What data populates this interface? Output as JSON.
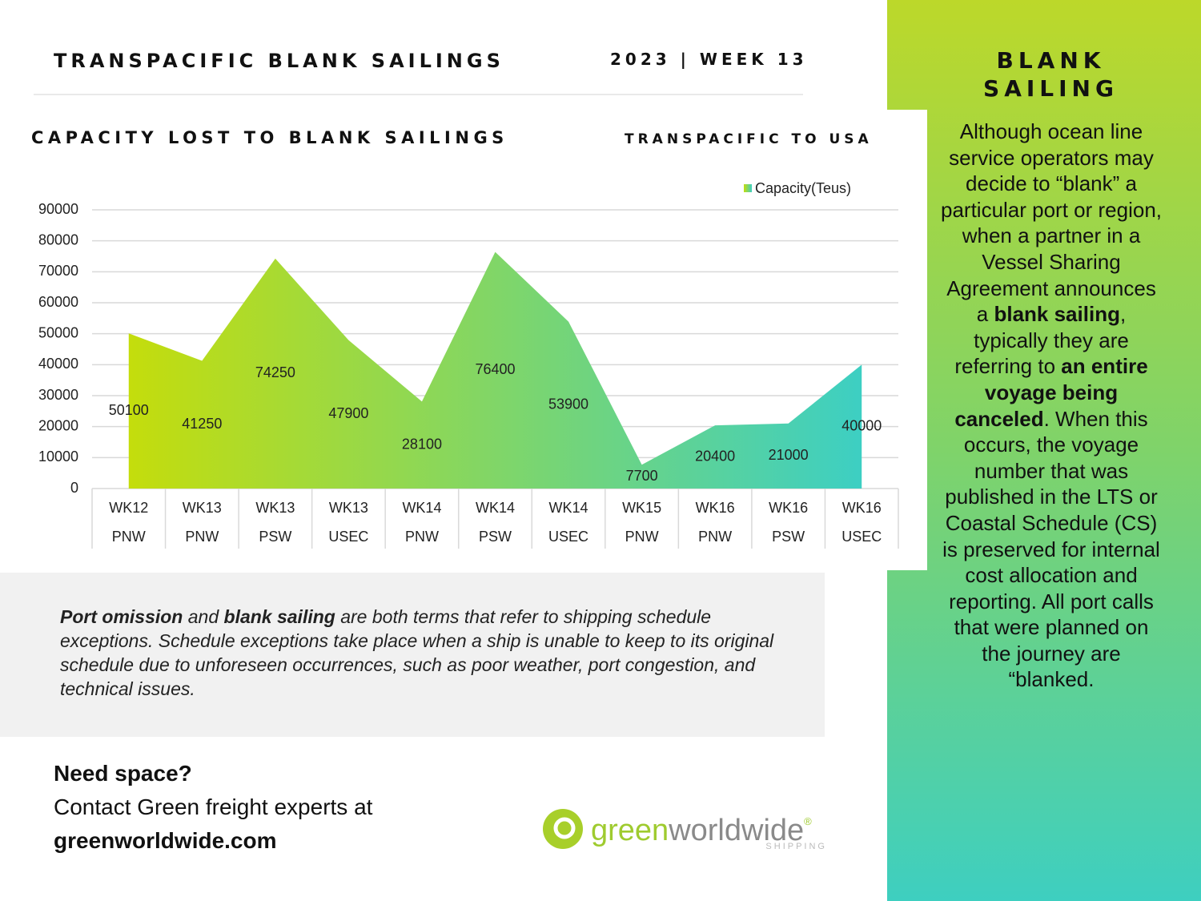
{
  "header": {
    "title": "TRANSPACIFIC BLANK SAILINGS",
    "edition": "2023 | WEEK 13"
  },
  "chart_data": {
    "type": "area",
    "title": "CAPACITY LOST TO BLANK SAILINGS",
    "subtitle": "TRANSPACIFIC TO USA",
    "categories": [
      [
        "WK12",
        "PNW"
      ],
      [
        "WK13",
        "PNW"
      ],
      [
        "WK13",
        "PSW"
      ],
      [
        "WK13",
        "USEC"
      ],
      [
        "WK14",
        "PNW"
      ],
      [
        "WK14",
        "PSW"
      ],
      [
        "WK14",
        "USEC"
      ],
      [
        "WK15",
        "PNW"
      ],
      [
        "WK16",
        "PNW"
      ],
      [
        "WK16",
        "PSW"
      ],
      [
        "WK16",
        "USEC"
      ]
    ],
    "series": [
      {
        "name": "Capacity(Teus)",
        "gradient": [
          "#c4dd0c",
          "#3dcfc3"
        ],
        "values": [
          50100,
          41250,
          74250,
          47900,
          28100,
          76400,
          53900,
          7700,
          20400,
          21000,
          40000
        ]
      }
    ],
    "ylim": [
      0,
      90000
    ],
    "yticks": [
      0,
      10000,
      20000,
      30000,
      40000,
      50000,
      60000,
      70000,
      80000,
      90000
    ],
    "grid": true,
    "legend": "top-right",
    "data_labels": true
  },
  "note": [
    "Port omission",
    " and ",
    "blank sailing",
    " are both terms that refer to shipping schedule exceptions. Schedule exceptions take place when a ship is unable to keep to its original schedule due to unforeseen occurrences, such as poor weather, port congestion, and technical issues."
  ],
  "contact": {
    "heading": "Need space?",
    "line": "Contact Green freight experts at",
    "url": "greenworldwide.com"
  },
  "logo": {
    "first": "green",
    "second": "worldwide",
    "mark": "®",
    "tagline": "SHIPPING"
  },
  "sidebar": {
    "title": "BLANK SAILING",
    "text": [
      "Although ocean line service operators may decide to “blank” a particular port or region, when a partner in a Vessel Sharing Agreement announces a ",
      "blank sailing",
      ", typically they are referring to ",
      "an entire voyage being canceled",
      ". When this occurs, the voyage number that was published in the LTS or Coastal Schedule (CS) is preserved for internal cost allocation and reporting. All port calls that were planned on the journey are “blanked."
    ]
  }
}
